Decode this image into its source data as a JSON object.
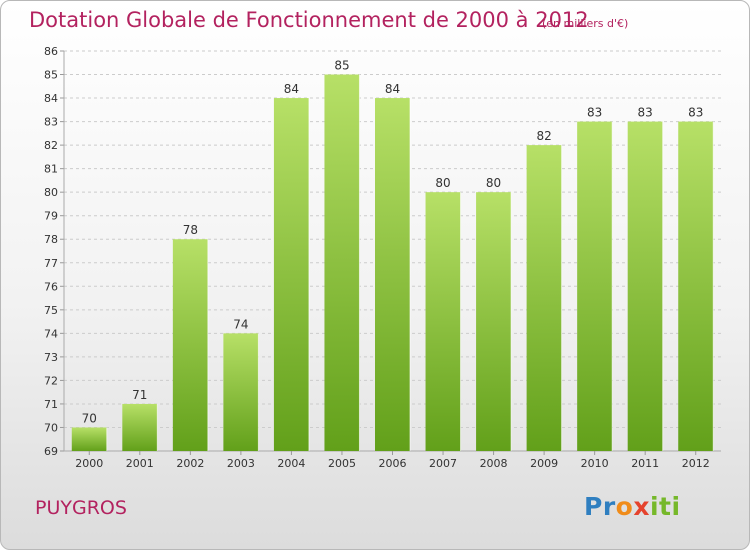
{
  "title": "Dotation Globale de Fonctionnement de 2000 à 2012",
  "subtitle": "(en milliers d'€)",
  "commune": "PUYGROS",
  "logo": {
    "p1": "Pr",
    "p2": "o",
    "p3": "x",
    "p4": "iti"
  },
  "colors": {
    "bar_light": "#b7e067",
    "bar_dark": "#62a01a",
    "title": "#b3225f",
    "grid": "#cccccc"
  },
  "chart_data": {
    "type": "bar",
    "title": "Dotation Globale de Fonctionnement de 2000 à 2012",
    "subtitle": "(en milliers d'€)",
    "categories": [
      "2000",
      "2001",
      "2002",
      "2003",
      "2004",
      "2005",
      "2006",
      "2007",
      "2008",
      "2009",
      "2010",
      "2011",
      "2012"
    ],
    "values": [
      70,
      71,
      78,
      74,
      84,
      85,
      84,
      80,
      80,
      82,
      83,
      83,
      83
    ],
    "ylim": [
      69,
      86
    ],
    "yticks": [
      69,
      70,
      71,
      72,
      73,
      74,
      75,
      76,
      77,
      78,
      79,
      80,
      81,
      82,
      83,
      84,
      85,
      86
    ],
    "grid": true,
    "xlabel": "",
    "ylabel": ""
  }
}
